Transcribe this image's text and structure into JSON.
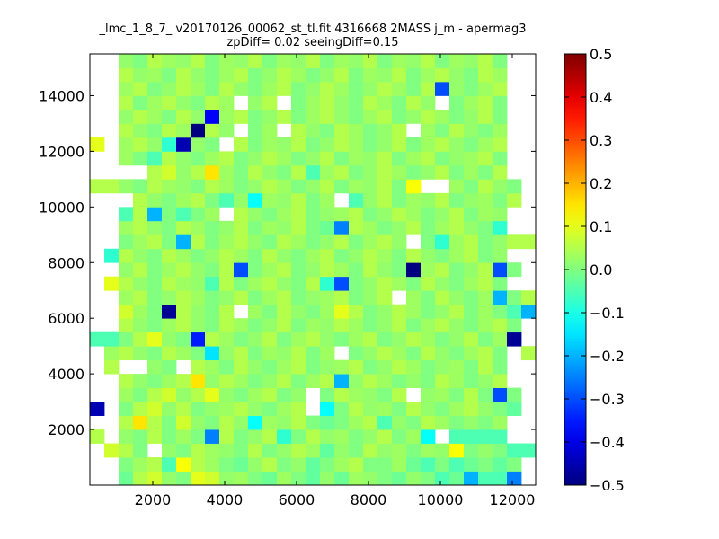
{
  "chart_data": {
    "type": "heatmap",
    "title": "_lmc_1_8_7_ v20170126_00062_st_tl.fit 4316668 2MASS j_m - apermag3",
    "subtitle": "zpDiff= 0.02 seeingDiff=0.15",
    "xlabel": "",
    "ylabel": "",
    "xlim": [
      250,
      12650
    ],
    "ylim": [
      0,
      15500
    ],
    "x_ticks": [
      2000,
      4000,
      6000,
      8000,
      10000,
      12000
    ],
    "y_ticks": [
      2000,
      4000,
      6000,
      8000,
      10000,
      12000,
      14000
    ],
    "colorbar": {
      "min": -0.5,
      "max": 0.5,
      "ticks": [
        -0.5,
        -0.4,
        -0.3,
        -0.2,
        -0.1,
        0.0,
        0.1,
        0.2,
        0.3,
        0.4,
        0.5
      ],
      "tick_labels": [
        "−0.5",
        "−0.4",
        "−0.3",
        "−0.2",
        "−0.1",
        "0.0",
        "0.1",
        "0.2",
        "0.3",
        "0.4",
        "0.5"
      ],
      "colormap": "jet"
    },
    "grid": false,
    "cell_size": [
      400,
      500
    ],
    "cell_origin": [
      250,
      0
    ],
    "rows_bottom_to_top": [
      "....-xx---xx-x-x-xxxxx-xxx-x..n...",
      "...xx-xxxxx-x--x-xxxxxx-xxxxxx-n..",
      "..xx--x-x--x--x--x--xx-x-xxx-x--.",
      "..xx-x-xxxxxxx-x-x-xxxxxxx-x--x.x",
      "..xxx-x-xxx-x-xx-xx-xxxxxxx-x-xxx",
      "..xx-xxxxxx-x-xx-x-xx-xx-x-xxxxxx",
      "..xxxxx-xxxxxx-x-xx-xx-xxxxx-xxx",
      "..xxxxxxxxxxxxxxxxxxxxxxxxxxxxxx"
    ],
    "grid_values": {
      "cols": 31,
      "rows": 31,
      "values_bottom_to_top": [
        [
          null,
          null,
          -0.02,
          0.05,
          0.08,
          0.02,
          0.0,
          0.1,
          0.08,
          0.02,
          0.03,
          0.0,
          -0.02,
          0.03,
          0.0,
          -0.03,
          0.02,
          -0.02,
          0.03,
          0.02,
          0.0,
          -0.02,
          0.02,
          0.0,
          -0.05,
          -0.02,
          -0.2,
          -0.05,
          -0.05,
          -0.25,
          null
        ],
        [
          null,
          null,
          0.0,
          0.03,
          0.05,
          -0.05,
          0.12,
          0.05,
          0.03,
          0.0,
          -0.02,
          0.02,
          0.05,
          0.0,
          0.02,
          -0.03,
          0.0,
          0.03,
          0.05,
          0.0,
          0.0,
          0.03,
          -0.02,
          -0.05,
          0.0,
          -0.05,
          -0.02,
          0.0,
          -0.03,
          0.0,
          null
        ],
        [
          null,
          0.08,
          0.05,
          0.0,
          null,
          0.02,
          0.0,
          0.05,
          0.03,
          0.02,
          0.0,
          0.05,
          0.0,
          0.02,
          0.05,
          0.03,
          -0.03,
          0.02,
          0.0,
          0.05,
          0.02,
          0.03,
          0.0,
          0.03,
          0.02,
          0.12,
          0.0,
          0.02,
          0.0,
          -0.05,
          -0.05
        ],
        [
          0.05,
          null,
          0.02,
          0.0,
          0.05,
          0.0,
          0.03,
          0.0,
          -0.25,
          0.05,
          0.0,
          0.02,
          0.05,
          -0.08,
          0.0,
          0.05,
          0.02,
          0.03,
          0.0,
          0.02,
          0.05,
          0.0,
          0.03,
          -0.12,
          null,
          -0.05,
          -0.05,
          -0.05,
          -0.05,
          null,
          null
        ],
        [
          null,
          null,
          0.05,
          0.15,
          0.05,
          0.0,
          0.08,
          0.02,
          0.0,
          0.05,
          0.02,
          -0.12,
          0.03,
          0.02,
          0.05,
          0.0,
          -0.02,
          0.0,
          0.03,
          0.05,
          -0.05,
          0.02,
          0.0,
          0.05,
          0.03,
          0.0,
          0.02,
          0.0,
          0.03,
          null,
          null
        ],
        [
          -0.45,
          null,
          0.0,
          0.05,
          0.08,
          0.02,
          0.05,
          0.0,
          0.02,
          0.03,
          0.05,
          0.02,
          0.0,
          0.03,
          0.05,
          null,
          -0.12,
          0.0,
          0.05,
          0.02,
          0.03,
          0.0,
          0.05,
          0.02,
          0.0,
          0.03,
          0.05,
          0.02,
          0.0,
          -0.03,
          null
        ],
        [
          null,
          null,
          0.03,
          0.0,
          0.05,
          0.08,
          0.02,
          0.05,
          0.1,
          0.02,
          0.0,
          0.03,
          0.05,
          0.0,
          0.02,
          null,
          0.0,
          0.05,
          0.03,
          0.02,
          0.0,
          0.05,
          null,
          0.02,
          0.03,
          0.0,
          0.05,
          0.0,
          -0.3,
          0.0,
          null
        ],
        [
          null,
          null,
          0.05,
          0.02,
          0.0,
          0.03,
          0.05,
          0.15,
          0.02,
          0.05,
          0.03,
          0.0,
          0.02,
          0.05,
          0.0,
          0.03,
          0.05,
          -0.2,
          0.02,
          0.05,
          0.03,
          0.0,
          0.02,
          0.0,
          0.05,
          0.03,
          0.0,
          0.02,
          0.05,
          null,
          null
        ],
        [
          null,
          0.05,
          null,
          null,
          0.02,
          0.0,
          null,
          0.05,
          0.03,
          0.0,
          0.05,
          0.02,
          0.0,
          0.03,
          0.05,
          0.0,
          0.02,
          0.03,
          0.05,
          0.0,
          0.02,
          0.05,
          0.03,
          0.0,
          0.02,
          0.03,
          0.0,
          0.05,
          0.0,
          null,
          null
        ],
        [
          null,
          0.03,
          0.05,
          0.02,
          0.0,
          0.05,
          0.03,
          0.0,
          -0.15,
          0.02,
          0.05,
          0.0,
          0.03,
          0.02,
          0.05,
          0.0,
          0.03,
          null,
          0.0,
          0.02,
          0.05,
          0.03,
          0.0,
          0.05,
          0.02,
          0.0,
          0.03,
          0.05,
          0.0,
          null,
          0.05
        ],
        [
          -0.05,
          -0.05,
          0.0,
          0.05,
          0.1,
          0.02,
          0.0,
          -0.35,
          0.05,
          0.03,
          0.0,
          0.02,
          0.05,
          0.0,
          0.03,
          0.05,
          0.02,
          0.0,
          0.03,
          0.05,
          0.0,
          0.02,
          0.05,
          0.03,
          0.0,
          0.02,
          0.05,
          0.0,
          0.03,
          -0.48,
          null
        ],
        [
          null,
          null,
          0.05,
          0.02,
          0.0,
          0.03,
          0.05,
          0.02,
          0.0,
          0.05,
          0.03,
          0.0,
          0.02,
          0.05,
          0.0,
          0.03,
          0.02,
          0.05,
          0.03,
          0.0,
          0.02,
          0.05,
          0.0,
          0.03,
          0.05,
          0.02,
          0.0,
          0.03,
          0.05,
          0.0,
          null
        ],
        [
          null,
          null,
          0.08,
          0.03,
          0.0,
          -0.48,
          0.05,
          0.02,
          0.0,
          0.05,
          null,
          0.03,
          0.0,
          0.05,
          0.02,
          0.0,
          0.03,
          0.1,
          0.05,
          0.0,
          0.02,
          0.05,
          0.03,
          0.0,
          0.02,
          0.05,
          0.0,
          0.03,
          0.0,
          -0.05,
          -0.2
        ],
        [
          null,
          null,
          0.03,
          0.05,
          0.0,
          0.02,
          0.05,
          0.03,
          0.0,
          0.02,
          0.05,
          0.0,
          0.03,
          0.05,
          0.0,
          0.02,
          0.03,
          0.05,
          0.0,
          0.02,
          0.05,
          null,
          0.03,
          0.0,
          0.05,
          0.02,
          0.0,
          0.03,
          -0.2,
          0.0,
          0.05
        ],
        [
          null,
          0.1,
          0.05,
          0.02,
          0.0,
          0.05,
          0.03,
          0.02,
          -0.05,
          0.05,
          0.0,
          0.03,
          0.05,
          0.02,
          0.0,
          0.05,
          -0.08,
          -0.3,
          0.0,
          0.02,
          0.05,
          0.03,
          0.0,
          0.05,
          0.02,
          0.0,
          0.03,
          0.05,
          0.0,
          null,
          null
        ],
        [
          null,
          null,
          0.02,
          0.05,
          0.0,
          0.03,
          0.05,
          0.02,
          0.0,
          0.05,
          -0.3,
          0.0,
          0.03,
          0.05,
          0.0,
          0.02,
          0.05,
          0.03,
          0.0,
          0.05,
          0.02,
          0.0,
          -0.5,
          0.03,
          0.05,
          0.0,
          0.02,
          0.05,
          -0.3,
          0.0,
          null
        ],
        [
          null,
          -0.08,
          0.05,
          0.02,
          0.0,
          0.05,
          0.03,
          0.0,
          0.02,
          0.05,
          0.03,
          0.0,
          0.05,
          0.02,
          0.0,
          0.03,
          0.05,
          0.0,
          0.02,
          0.05,
          0.03,
          0.0,
          0.05,
          0.02,
          0.0,
          0.03,
          0.05,
          0.0,
          0.02,
          null,
          null
        ],
        [
          null,
          null,
          0.0,
          0.03,
          0.05,
          0.0,
          -0.2,
          0.05,
          0.0,
          0.03,
          0.05,
          0.02,
          0.0,
          0.05,
          0.03,
          0.0,
          0.02,
          0.05,
          0.0,
          0.03,
          0.05,
          0.02,
          null,
          0.0,
          -0.08,
          0.03,
          0.05,
          0.0,
          0.02,
          0.05,
          0.05
        ],
        [
          null,
          null,
          0.03,
          0.05,
          0.02,
          0.0,
          0.05,
          0.03,
          0.0,
          0.02,
          0.05,
          0.0,
          0.03,
          0.02,
          0.05,
          0.0,
          -0.02,
          -0.25,
          0.05,
          0.03,
          0.0,
          0.02,
          0.05,
          0.0,
          0.03,
          0.05,
          0.02,
          0.0,
          -0.08,
          null,
          null
        ],
        [
          null,
          null,
          -0.05,
          0.05,
          -0.2,
          0.0,
          -0.05,
          0.0,
          0.03,
          null,
          0.05,
          0.02,
          0.0,
          0.03,
          0.05,
          0.0,
          0.02,
          0.03,
          0.05,
          0.0,
          0.02,
          0.05,
          0.03,
          0.0,
          0.02,
          0.05,
          0.0,
          0.03,
          0.02,
          null,
          null
        ],
        [
          null,
          null,
          null,
          0.05,
          0.02,
          0.0,
          0.03,
          0.05,
          0.0,
          -0.05,
          0.02,
          -0.12,
          0.03,
          0.02,
          0.05,
          0.0,
          0.03,
          null,
          -0.05,
          0.02,
          0.05,
          0.0,
          0.03,
          0.02,
          0.05,
          0.0,
          0.02,
          0.03,
          0.0,
          0.05,
          null
        ],
        [
          0.05,
          0.05,
          0.02,
          0.0,
          0.05,
          0.03,
          0.02,
          0.0,
          0.05,
          0.03,
          0.0,
          0.02,
          0.05,
          0.03,
          0.0,
          0.02,
          0.05,
          0.0,
          0.03,
          0.02,
          0.05,
          0.0,
          0.12,
          null,
          null,
          0.03,
          0.0,
          0.05,
          0.02,
          0.0,
          null
        ],
        [
          null,
          null,
          null,
          null,
          0.05,
          0.08,
          0.02,
          0.05,
          0.15,
          0.03,
          0.0,
          0.05,
          0.02,
          0.0,
          0.05,
          -0.05,
          0.03,
          0.05,
          0.0,
          0.02,
          0.05,
          0.03,
          0.0,
          0.02,
          0.05,
          0.0,
          0.03,
          0.0,
          0.05,
          null,
          null
        ],
        [
          null,
          null,
          0.03,
          0.0,
          -0.05,
          0.05,
          0.02,
          0.0,
          0.03,
          0.05,
          0.0,
          0.02,
          0.05,
          0.03,
          0.0,
          0.02,
          0.05,
          0.0,
          0.03,
          0.02,
          0.05,
          0.0,
          0.03,
          0.05,
          0.0,
          0.02,
          0.03,
          0.05,
          0.0,
          null,
          null
        ],
        [
          0.1,
          null,
          0.03,
          0.05,
          0.02,
          -0.08,
          -0.45,
          0.02,
          0.0,
          null,
          0.05,
          0.0,
          0.03,
          0.02,
          0.05,
          0.0,
          0.02,
          0.05,
          0.03,
          0.0,
          0.02,
          0.05,
          0.0,
          0.03,
          0.05,
          0.02,
          0.0,
          0.03,
          0.05,
          null,
          null
        ],
        [
          null,
          null,
          0.05,
          0.02,
          0.0,
          0.05,
          0.03,
          -0.5,
          0.05,
          0.02,
          null,
          0.0,
          0.03,
          null,
          0.05,
          0.02,
          0.0,
          0.05,
          0.03,
          0.0,
          0.02,
          0.05,
          null,
          0.03,
          0.0,
          0.05,
          0.02,
          0.0,
          0.03,
          null,
          null
        ],
        [
          null,
          null,
          0.02,
          0.05,
          0.03,
          0.0,
          0.05,
          0.02,
          -0.38,
          0.03,
          0.05,
          0.0,
          0.02,
          0.05,
          0.0,
          0.03,
          0.05,
          0.02,
          0.0,
          0.03,
          0.05,
          0.0,
          0.02,
          0.05,
          0.03,
          0.0,
          0.02,
          0.05,
          0.0,
          null,
          null
        ],
        [
          null,
          null,
          0.05,
          0.0,
          0.03,
          0.05,
          0.02,
          0.0,
          0.05,
          0.03,
          null,
          0.02,
          0.05,
          null,
          0.0,
          0.03,
          0.05,
          0.02,
          0.0,
          0.05,
          0.03,
          0.0,
          0.05,
          0.02,
          null,
          0.0,
          0.03,
          0.05,
          0.0,
          null,
          null
        ],
        [
          null,
          null,
          0.03,
          0.05,
          0.0,
          0.02,
          0.05,
          0.03,
          0.0,
          0.05,
          0.02,
          0.0,
          0.03,
          0.05,
          0.0,
          0.02,
          0.05,
          0.03,
          0.0,
          0.02,
          0.05,
          0.03,
          0.0,
          0.05,
          -0.3,
          0.02,
          0.0,
          0.03,
          0.05,
          null,
          null
        ],
        [
          null,
          null,
          0.05,
          0.02,
          0.03,
          0.0,
          0.05,
          0.02,
          0.0,
          0.03,
          0.05,
          0.0,
          0.02,
          0.05,
          0.03,
          0.0,
          0.02,
          0.05,
          0.0,
          0.03,
          0.02,
          0.05,
          0.0,
          0.03,
          0.05,
          0.02,
          0.0,
          0.05,
          0.03,
          null,
          null
        ],
        [
          null,
          null,
          0.02,
          0.0,
          0.05,
          0.03,
          0.02,
          0.05,
          0.0,
          0.03,
          0.02,
          0.05,
          0.0,
          0.03,
          0.02,
          0.05,
          0.0,
          0.03,
          0.02,
          0.05,
          0.0,
          0.03,
          0.02,
          0.05,
          0.0,
          0.03,
          0.02,
          0.05,
          0.0,
          null,
          null
        ]
      ]
    }
  }
}
